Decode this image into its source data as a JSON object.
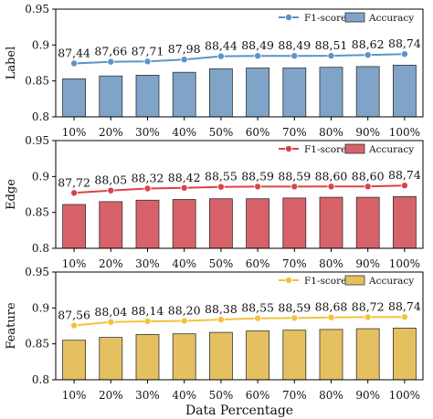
{
  "chart_data": {
    "type": "bar",
    "xlabel": "Data Percentage",
    "categories": [
      "10%",
      "20%",
      "30%",
      "40%",
      "50%",
      "60%",
      "70%",
      "80%",
      "90%",
      "100%"
    ],
    "ylim": [
      0.8,
      0.95
    ],
    "yticks": [
      "0.8",
      "0.85",
      "0.9",
      "0.95"
    ],
    "legend_position": "top-right",
    "grid": false,
    "panels": [
      {
        "ylabel": "Label",
        "line_name": "F1-score",
        "bar_name": "Accuracy",
        "line_color": "#5b93c9",
        "bar_color": "#7fa4c8",
        "f1_values": [
          0.8744,
          0.8766,
          0.8771,
          0.8798,
          0.8844,
          0.8849,
          0.8849,
          0.8851,
          0.8862,
          0.8874
        ],
        "f1_labels": [
          "87,44",
          "87,66",
          "87,71",
          "87,98",
          "88,44",
          "88,49",
          "88,49",
          "88,51",
          "88,62",
          "88,74"
        ],
        "accuracy_values": [
          0.853,
          0.857,
          0.858,
          0.862,
          0.867,
          0.868,
          0.868,
          0.869,
          0.87,
          0.872
        ]
      },
      {
        "ylabel": "Edge",
        "line_name": "F1-score",
        "bar_name": "Accuracy",
        "line_color": "#d8444b",
        "bar_color": "#d7626a",
        "f1_values": [
          0.8772,
          0.8805,
          0.8832,
          0.8842,
          0.8855,
          0.8859,
          0.8859,
          0.886,
          0.886,
          0.8874
        ],
        "f1_labels": [
          "87,72",
          "88,05",
          "88,32",
          "88,42",
          "88,55",
          "88,59",
          "88,59",
          "88,60",
          "88,60",
          "88,74"
        ],
        "accuracy_values": [
          0.861,
          0.865,
          0.867,
          0.868,
          0.869,
          0.869,
          0.87,
          0.871,
          0.871,
          0.872
        ]
      },
      {
        "ylabel": "Feature",
        "line_name": "F1-score",
        "bar_name": "Accuracy",
        "line_color": "#f3c23a",
        "bar_color": "#e5c060",
        "f1_values": [
          0.8756,
          0.8804,
          0.8814,
          0.882,
          0.8838,
          0.8855,
          0.8859,
          0.8868,
          0.8872,
          0.8874
        ],
        "f1_labels": [
          "87,56",
          "88,04",
          "88,14",
          "88,20",
          "88,38",
          "88,55",
          "88,59",
          "88,68",
          "88,72",
          "88,74"
        ],
        "accuracy_values": [
          0.855,
          0.859,
          0.863,
          0.864,
          0.866,
          0.868,
          0.869,
          0.87,
          0.871,
          0.872
        ]
      }
    ]
  }
}
